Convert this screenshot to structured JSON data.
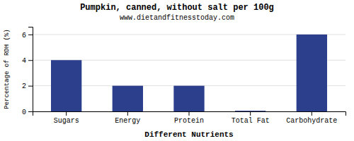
{
  "chart_data": {
    "type": "bar",
    "title": "Pumpkin, canned, without salt per 100g",
    "subtitle": "www.dietandfitnesstoday.com",
    "xlabel": "Different Nutrients",
    "ylabel": "Percentage of RDH (%)",
    "categories": [
      "Sugars",
      "Energy",
      "Protein",
      "Total Fat",
      "Carbohydrate"
    ],
    "values": [
      4.0,
      2.0,
      2.0,
      0.05,
      6.0
    ],
    "color": "#2b3f8c",
    "ylim": [
      0,
      6.6
    ],
    "yticks": [
      0,
      2,
      4,
      6
    ],
    "grid": true
  }
}
